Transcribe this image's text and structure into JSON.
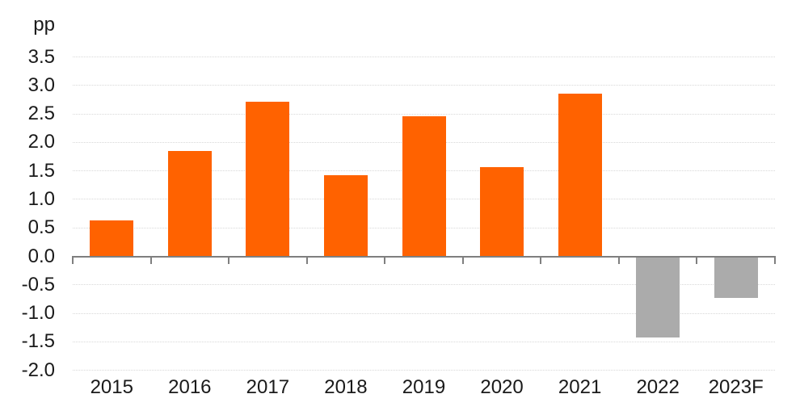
{
  "chart_data": {
    "type": "bar",
    "title": "",
    "ylabel": "pp",
    "xlabel": "",
    "categories": [
      "2015",
      "2016",
      "2017",
      "2018",
      "2019",
      "2020",
      "2021",
      "2022",
      "2023F"
    ],
    "values": [
      0.63,
      1.85,
      2.72,
      1.42,
      2.46,
      1.56,
      2.86,
      -1.41,
      -0.71
    ],
    "bar_colors": [
      "#FF6200",
      "#FF6200",
      "#FF6200",
      "#FF6200",
      "#FF6200",
      "#FF6200",
      "#FF6200",
      "#ABABAB",
      "#ABABAB"
    ],
    "yticks": [
      3.5,
      3.0,
      2.5,
      2.0,
      1.5,
      1.0,
      0.5,
      0.0,
      -0.5,
      -1.0,
      -1.5,
      -2.0
    ],
    "ylim": [
      -2.0,
      3.5
    ],
    "grid": "horizontal-dotted",
    "legend_position": "none",
    "colors": {
      "bar_actual": "#FF6200",
      "bar_forecast": "#ABABAB",
      "axis": "#7F7F7F",
      "gridline": "#D8D8D8",
      "text": "#1A1A1A"
    }
  }
}
